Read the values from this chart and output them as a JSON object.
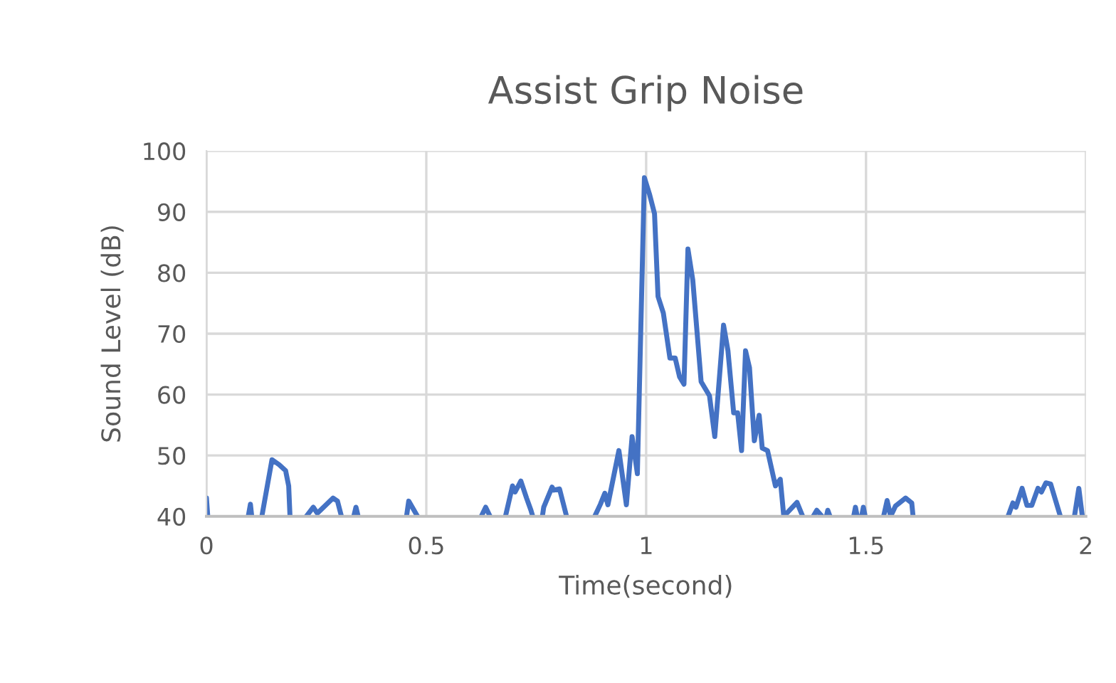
{
  "chart_data": {
    "type": "line",
    "title": "Assist Grip Noise",
    "xlabel": "Time(second)",
    "ylabel": "Sound Level (dB)",
    "x": [
      0,
      0.003,
      0.004,
      0.095,
      0.1,
      0.103,
      0.104,
      0.126,
      0.149,
      0.165,
      0.18,
      0.187,
      0.19,
      0.191,
      0.227,
      0.243,
      0.252,
      0.288,
      0.298,
      0.307,
      0.308,
      0.335,
      0.34,
      0.345,
      0.346,
      0.455,
      0.46,
      0.48,
      0.481,
      0.625,
      0.635,
      0.645,
      0.646,
      0.68,
      0.696,
      0.702,
      0.715,
      0.728,
      0.738,
      0.742,
      0.743,
      0.764,
      0.767,
      0.786,
      0.79,
      0.803,
      0.819,
      0.82,
      0.883,
      0.896,
      0.906,
      0.913,
      0.938,
      0.955,
      0.968,
      0.98,
      0.996,
      1.008,
      1.019,
      1.027,
      1.039,
      1.054,
      1.066,
      1.076,
      1.086,
      1.095,
      1.106,
      1.125,
      1.144,
      1.156,
      1.176,
      1.186,
      1.199,
      1.208,
      1.217,
      1.226,
      1.235,
      1.246,
      1.257,
      1.264,
      1.276,
      1.294,
      1.305,
      1.313,
      1.343,
      1.356,
      1.357,
      1.38,
      1.388,
      1.4,
      1.401,
      1.41,
      1.413,
      1.418,
      1.419,
      1.472,
      1.476,
      1.48,
      1.481,
      1.49,
      1.494,
      1.498,
      1.499,
      1.54,
      1.548,
      1.556,
      1.567,
      1.59,
      1.604,
      1.607,
      1.608,
      1.823,
      1.834,
      1.841,
      1.855,
      1.866,
      1.877,
      1.891,
      1.899,
      1.909,
      1.92,
      1.942,
      1.943,
      1.974,
      1.984,
      1.992
    ],
    "series": [
      {
        "color": "#4472c4",
        "values": [
          43,
          40,
          null,
          40,
          42,
          40,
          null,
          40,
          49.3,
          48.5,
          47.5,
          45,
          40,
          null,
          40,
          41.5,
          40.5,
          43,
          42.5,
          40,
          null,
          40,
          41.5,
          40,
          null,
          40,
          42.5,
          40,
          null,
          40,
          41.5,
          40,
          null,
          40,
          45,
          44,
          45.8,
          43,
          41,
          40,
          null,
          40,
          41.5,
          44.8,
          44.3,
          44.5,
          40,
          null,
          40,
          42,
          43.8,
          41.9,
          50.8,
          41.9,
          53.1,
          47,
          95.6,
          92.8,
          89.7,
          76.1,
          73.4,
          66,
          66,
          62.9,
          61.7,
          83.9,
          78.8,
          62.1,
          59.8,
          53.1,
          71.4,
          67.2,
          57,
          57,
          50.8,
          67.2,
          64.4,
          52.4,
          56.6,
          51.2,
          50.8,
          45,
          46.1,
          40,
          42.3,
          40,
          null,
          40,
          41,
          40,
          null,
          40,
          41,
          40,
          null,
          40,
          41.5,
          40,
          null,
          40,
          41.5,
          40,
          null,
          40,
          42.6,
          40,
          41.7,
          43,
          42.2,
          40,
          null,
          40,
          42.2,
          41.5,
          44.6,
          41.8,
          41.8,
          44.6,
          44,
          45.5,
          45.3,
          40,
          null,
          40,
          44.6,
          40
        ]
      }
    ],
    "xlim": [
      0,
      2
    ],
    "xticks": [
      0,
      0.5,
      1,
      1.5,
      2
    ],
    "ylim": [
      40,
      100
    ],
    "yticks": [
      40,
      50,
      60,
      70,
      80,
      90,
      100
    ],
    "grid": true,
    "line_style": "solid",
    "marker": "none"
  }
}
